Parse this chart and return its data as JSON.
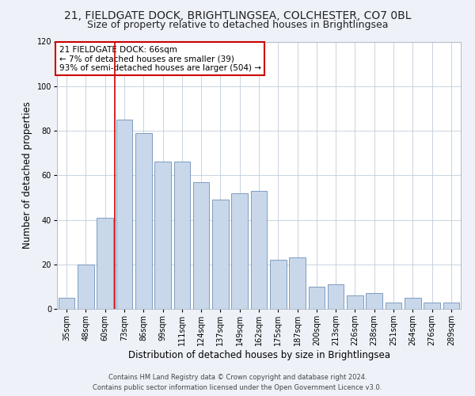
{
  "title_line1": "21, FIELDGATE DOCK, BRIGHTLINGSEA, COLCHESTER, CO7 0BL",
  "title_line2": "Size of property relative to detached houses in Brightlingsea",
  "xlabel": "Distribution of detached houses by size in Brightlingsea",
  "ylabel": "Number of detached properties",
  "categories": [
    "35sqm",
    "48sqm",
    "60sqm",
    "73sqm",
    "86sqm",
    "99sqm",
    "111sqm",
    "124sqm",
    "137sqm",
    "149sqm",
    "162sqm",
    "175sqm",
    "187sqm",
    "200sqm",
    "213sqm",
    "226sqm",
    "238sqm",
    "251sqm",
    "264sqm",
    "276sqm",
    "289sqm"
  ],
  "hist_values": [
    5,
    20,
    41,
    85,
    79,
    66,
    66,
    57,
    49,
    52,
    53,
    22,
    23,
    10,
    11,
    6,
    7,
    3,
    5,
    3,
    3
  ],
  "bar_color": "#c8d8ea",
  "bar_edge_color": "#7090b8",
  "vline_pos": 2.5,
  "vline_color": "#cc0000",
  "annotation_text": "21 FIELDGATE DOCK: 66sqm\n← 7% of detached houses are smaller (39)\n93% of semi-detached houses are larger (504) →",
  "annotation_box_color": "#ffffff",
  "annotation_box_edge": "#cc0000",
  "ylim": [
    0,
    120
  ],
  "yticks": [
    0,
    20,
    40,
    60,
    80,
    100,
    120
  ],
  "background_color": "#eef2f8",
  "plot_bg_color": "#ffffff",
  "footer_line1": "Contains HM Land Registry data © Crown copyright and database right 2024.",
  "footer_line2": "Contains public sector information licensed under the Open Government Licence v3.0.",
  "title_fontsize": 10,
  "subtitle_fontsize": 9,
  "tick_fontsize": 7,
  "ylabel_fontsize": 8.5,
  "xlabel_fontsize": 8.5,
  "annotation_fontsize": 7.5,
  "footer_fontsize": 6
}
